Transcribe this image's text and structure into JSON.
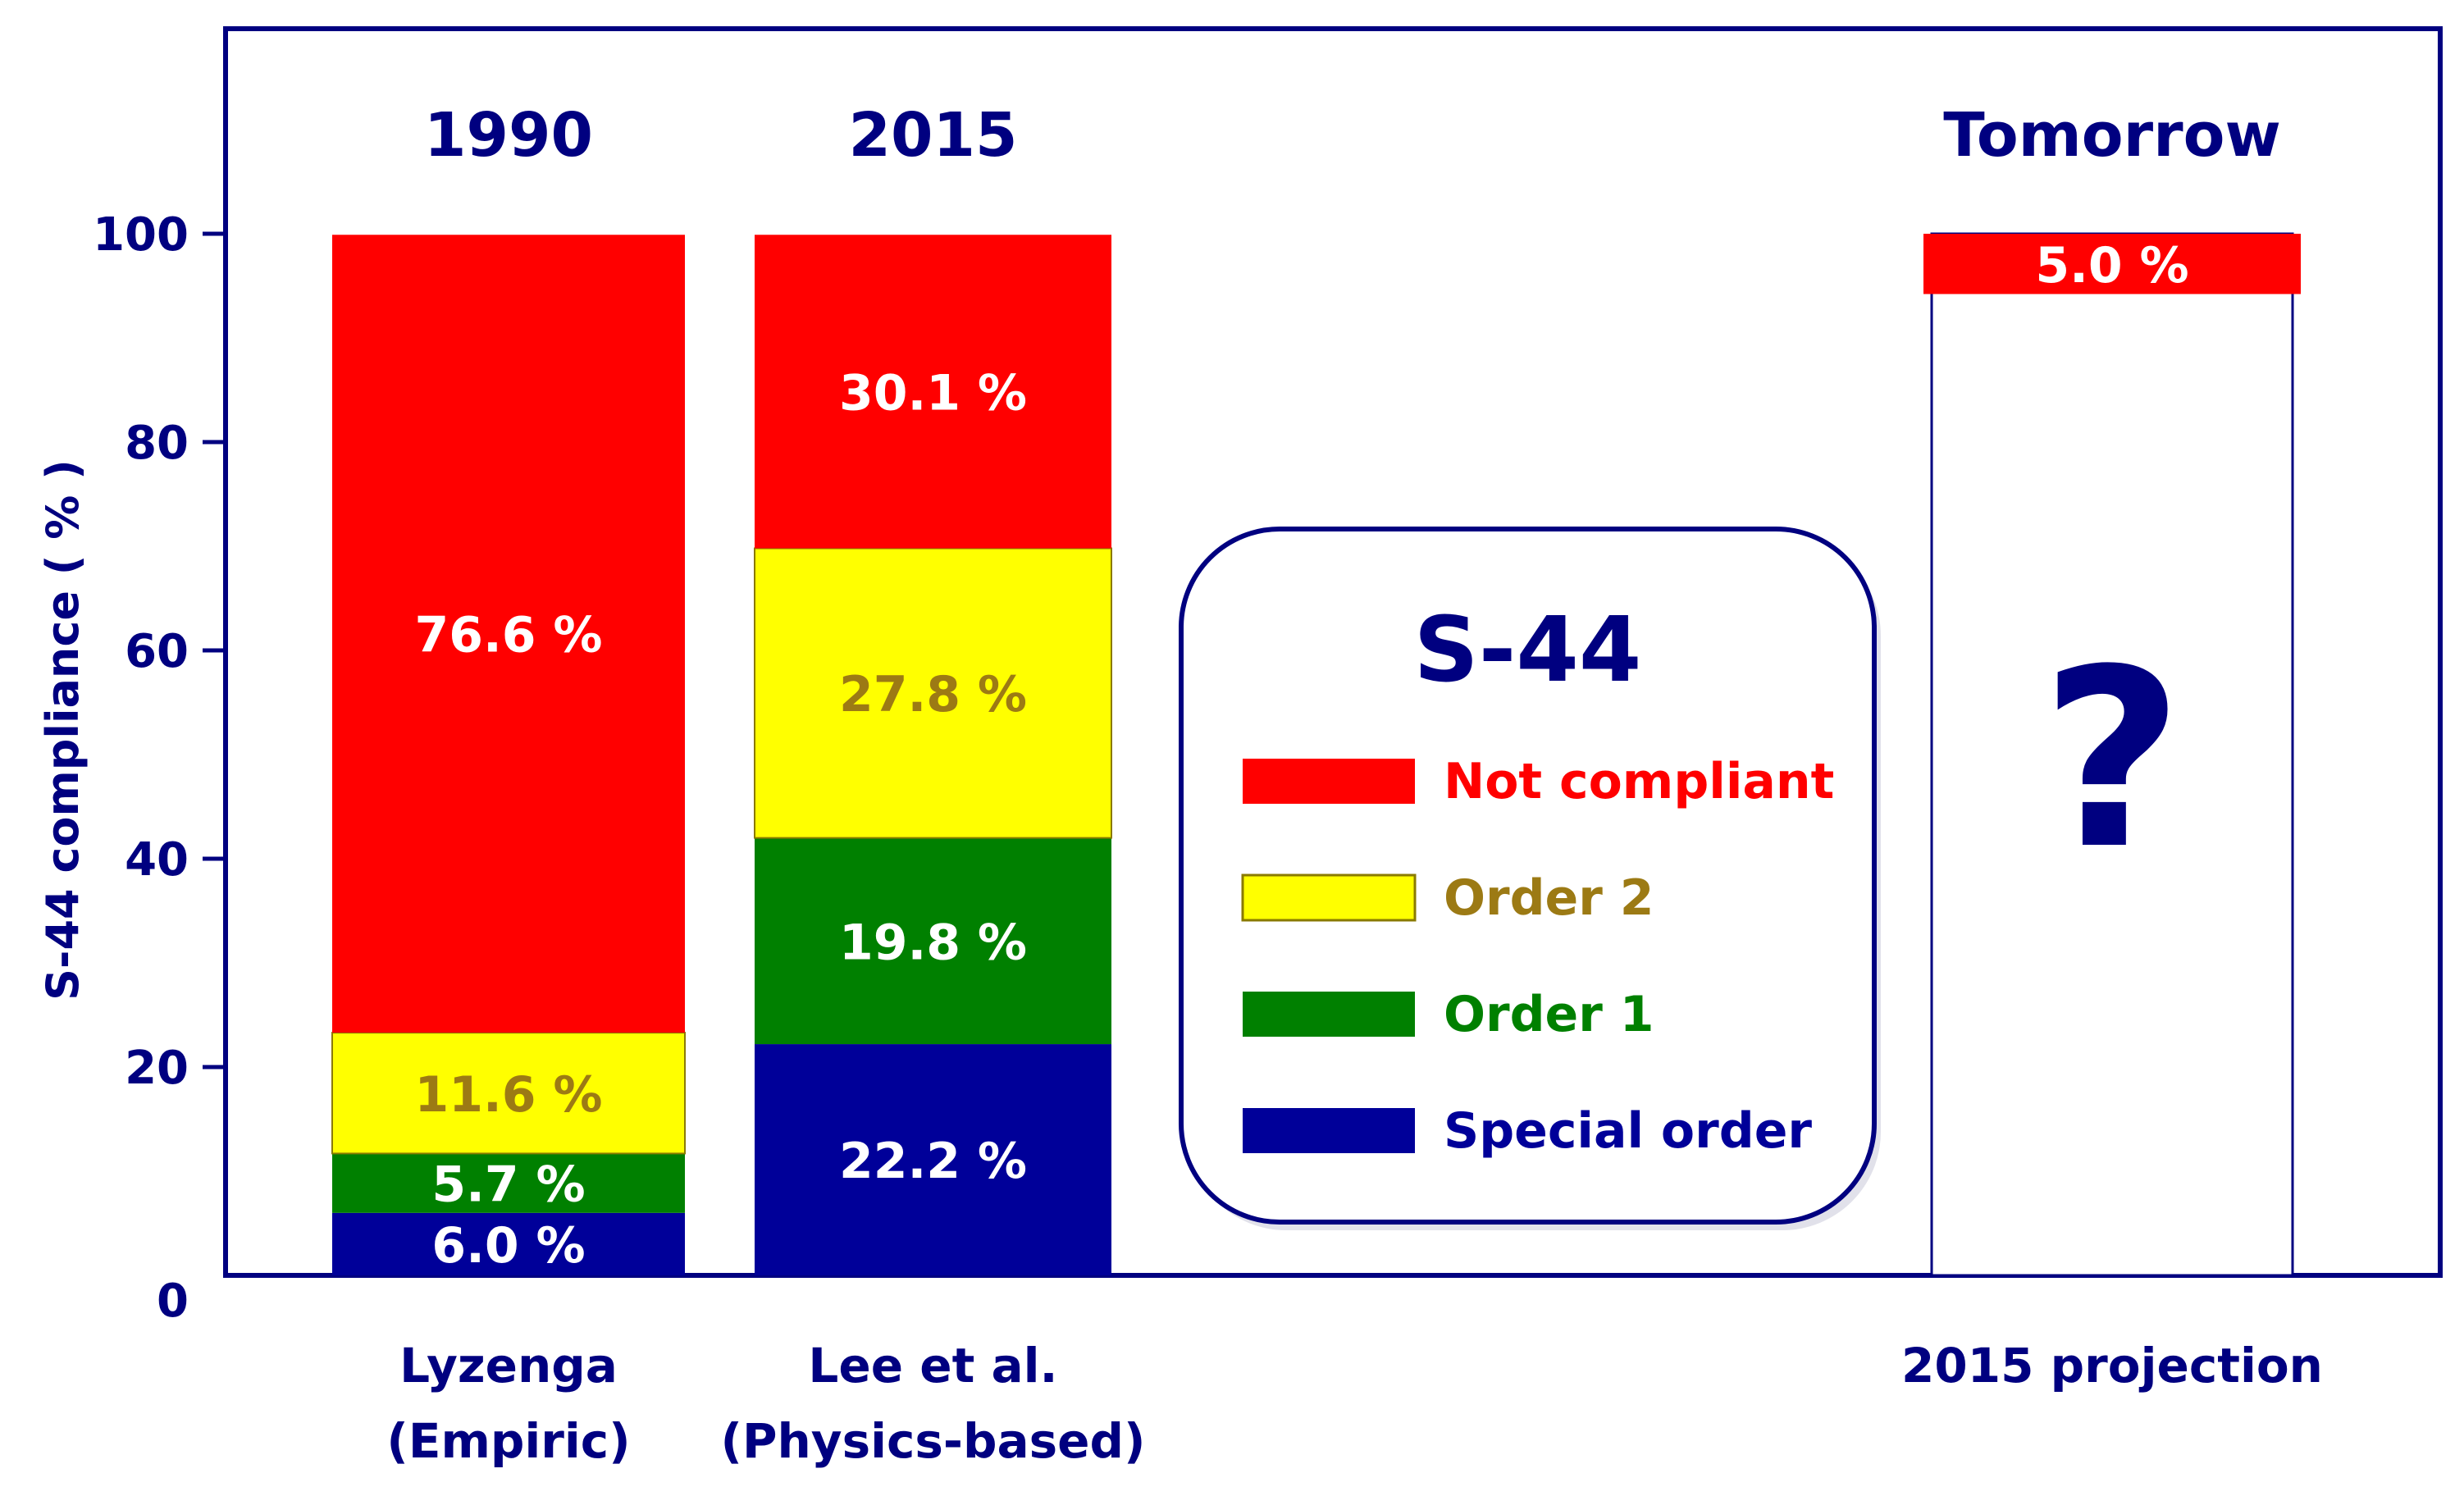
{
  "chart_data": {
    "type": "bar",
    "stacked": true,
    "ylabel": "S-44 compliance  ( % )",
    "ylim": [
      0,
      100
    ],
    "yticks": [
      "0",
      "20",
      "40",
      "60",
      "80",
      "100"
    ],
    "grid": false,
    "colors": {
      "frame": "#000080",
      "text": "#000080",
      "white_text": "#ffffff",
      "gold_text": "#9c7a14",
      "series": {
        "Not compliant": "#ff0000",
        "Order 2": "#ffff00",
        "Order 1": "#008000",
        "Special order": "#000099"
      }
    },
    "columns": [
      {
        "year": "1990",
        "label_line1": "Lyzenga",
        "label_line2": "(Empiric)",
        "segments": [
          {
            "series": "Special order",
            "value": 6.0,
            "label": "6.0 %"
          },
          {
            "series": "Order 1",
            "value": 5.7,
            "label": "5.7 %"
          },
          {
            "series": "Order 2",
            "value": 11.6,
            "label": "11.6 %"
          },
          {
            "series": "Not compliant",
            "value": 76.6,
            "label": "76.6 %"
          }
        ]
      },
      {
        "year": "2015",
        "label_line1": "Lee et al.",
        "label_line2": "(Physics-based)",
        "segments": [
          {
            "series": "Special order",
            "value": 22.2,
            "label": "22.2 %"
          },
          {
            "series": "Order 1",
            "value": 19.8,
            "label": "19.8 %"
          },
          {
            "series": "Order 2",
            "value": 27.8,
            "label": "27.8 %"
          },
          {
            "series": "Not compliant",
            "value": 30.1,
            "label": "30.1 %"
          }
        ]
      }
    ],
    "projection": {
      "year": "Tomorrow",
      "label_line1": "2015 projection",
      "not_compliant_value": 5.0,
      "not_compliant_label": "5.0 %",
      "unknown_mark": "?"
    },
    "legend": {
      "title": "S-44",
      "placement": "center",
      "entries": [
        {
          "series": "Not compliant",
          "label": "Not compliant"
        },
        {
          "series": "Order 2",
          "label": "Order 2"
        },
        {
          "series": "Order 1",
          "label": "Order 1"
        },
        {
          "series": "Special order",
          "label": "Special order"
        }
      ]
    }
  }
}
